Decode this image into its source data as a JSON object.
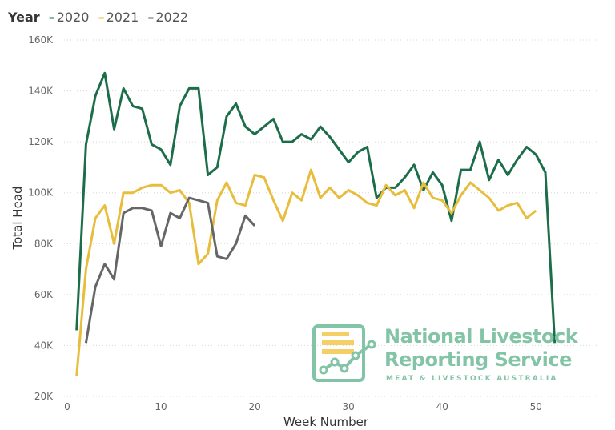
{
  "legend": {
    "title": "Year",
    "items": [
      {
        "label": "2020",
        "color": "#1c6d4a"
      },
      {
        "label": "2021",
        "color": "#e8bd3c"
      },
      {
        "label": "2022",
        "color": "#666666"
      }
    ]
  },
  "logo": {
    "line1": "National Livestock",
    "line2": "Reporting Service",
    "line3": "MEAT & LIVESTOCK AUSTRALIA",
    "color": "#83c4a6"
  },
  "chart_data": {
    "type": "line",
    "xlabel": "Week Number",
    "ylabel": "Total Head",
    "xlim": [
      0,
      55
    ],
    "ylim": [
      20000,
      160000
    ],
    "xticks": [
      0,
      10,
      20,
      30,
      40,
      50
    ],
    "yticks": [
      20000,
      40000,
      60000,
      80000,
      100000,
      120000,
      140000,
      160000
    ],
    "ytick_labels": [
      "20K",
      "40K",
      "60K",
      "80K",
      "100K",
      "120K",
      "140K",
      "160K"
    ],
    "grid": "horizontal dotted",
    "legend_position": "top-left",
    "series": [
      {
        "name": "2020",
        "color": "#1c6d4a",
        "x": [
          1,
          2,
          3,
          4,
          5,
          6,
          7,
          8,
          9,
          10,
          11,
          12,
          13,
          14,
          15,
          16,
          17,
          18,
          19,
          20,
          21,
          22,
          23,
          24,
          25,
          26,
          27,
          28,
          29,
          30,
          31,
          32,
          33,
          34,
          35,
          36,
          37,
          38,
          39,
          40,
          41,
          42,
          43,
          44,
          45,
          46,
          47,
          48,
          49,
          50,
          51,
          52
        ],
        "values": [
          46000,
          119000,
          138000,
          147000,
          125000,
          141000,
          134000,
          133000,
          119000,
          117000,
          111000,
          134000,
          141000,
          141000,
          107000,
          110000,
          130000,
          135000,
          126000,
          123000,
          126000,
          129000,
          120000,
          120000,
          123000,
          121000,
          126000,
          122000,
          117000,
          112000,
          116000,
          118000,
          98000,
          102000,
          102000,
          106000,
          111000,
          101000,
          108000,
          103000,
          89000,
          109000,
          109000,
          120000,
          105000,
          113000,
          107000,
          113000,
          118000,
          115000,
          108000,
          41000
        ]
      },
      {
        "name": "2021",
        "color": "#e8bd3c",
        "x": [
          1,
          2,
          3,
          4,
          5,
          6,
          7,
          8,
          9,
          10,
          11,
          12,
          13,
          14,
          15,
          16,
          17,
          18,
          19,
          20,
          21,
          22,
          23,
          24,
          25,
          26,
          27,
          28,
          29,
          30,
          31,
          32,
          33,
          34,
          35,
          36,
          37,
          38,
          39,
          40,
          41,
          42,
          43,
          44,
          45,
          46,
          47,
          48,
          49,
          50
        ],
        "values": [
          28000,
          70000,
          90000,
          95000,
          80000,
          100000,
          100000,
          102000,
          103000,
          103000,
          100000,
          101000,
          96000,
          72000,
          76000,
          97000,
          104000,
          96000,
          95000,
          107000,
          106000,
          97000,
          89000,
          100000,
          97000,
          109000,
          98000,
          102000,
          98000,
          101000,
          99000,
          96000,
          95000,
          103000,
          99000,
          101000,
          94000,
          104000,
          98000,
          97000,
          92000,
          99000,
          104000,
          101000,
          98000,
          93000,
          95000,
          96000,
          90000,
          93000
        ]
      },
      {
        "name": "2022",
        "color": "#666666",
        "x": [
          2,
          3,
          4,
          5,
          6,
          7,
          8,
          9,
          10,
          11,
          12,
          13,
          14,
          15,
          16,
          17,
          18,
          19,
          20
        ],
        "values": [
          41000,
          63000,
          72000,
          66000,
          92000,
          94000,
          94000,
          93000,
          79000,
          92000,
          90000,
          98000,
          97000,
          96000,
          75000,
          74000,
          80000,
          91000,
          87000
        ]
      }
    ]
  }
}
